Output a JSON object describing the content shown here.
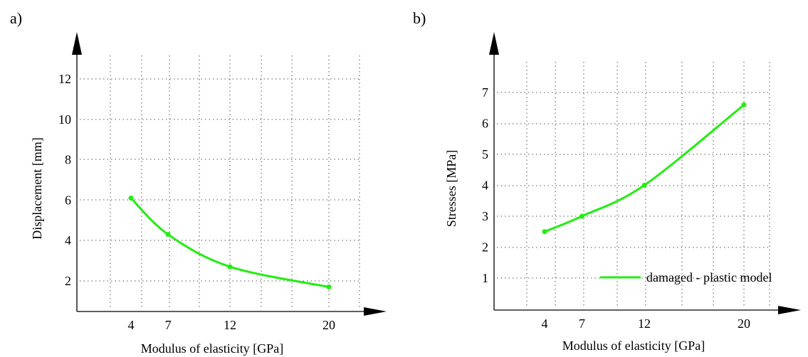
{
  "colors": {
    "series": "#22ee11",
    "axis": "#000000",
    "grid": "#555555"
  },
  "chart_data": [
    {
      "panel_label": "a)",
      "type": "line",
      "xlabel": "Modulus of elasticity [GPa]",
      "ylabel": "Displacement [mm]",
      "x_ticks": [
        4,
        7,
        12,
        20
      ],
      "y_ticks": [
        2,
        4,
        6,
        8,
        10,
        12
      ],
      "grid": true,
      "series": [
        {
          "x": [
            4,
            7,
            12,
            20
          ],
          "y": [
            6.1,
            4.3,
            2.7,
            1.7
          ]
        }
      ]
    },
    {
      "panel_label": "b)",
      "type": "line",
      "xlabel": "Modulus of elasticity [GPa]",
      "ylabel": "Stresses [MPa]",
      "x_ticks": [
        4,
        7,
        12,
        20
      ],
      "y_ticks": [
        1,
        2,
        3,
        4,
        5,
        6,
        7
      ],
      "grid": true,
      "legend": {
        "position": "lower-right",
        "entries": [
          "damaged - plastic model"
        ]
      },
      "series": [
        {
          "name": "damaged - plastic model",
          "x": [
            4,
            7,
            12,
            20
          ],
          "y": [
            2.5,
            3.0,
            4.0,
            6.6
          ]
        }
      ]
    }
  ]
}
